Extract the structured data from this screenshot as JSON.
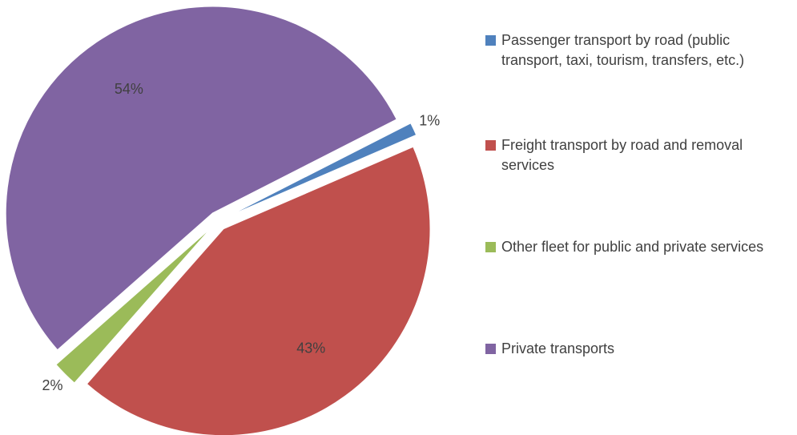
{
  "chart_data": {
    "type": "pie",
    "categories": [
      "Passenger transport by road (public transport, taxi, tourism, transfers, etc.)",
      "Freight transport by road and removal services",
      "Other fleet for public and private services",
      "Private transports"
    ],
    "values": [
      1,
      43,
      2,
      54
    ],
    "value_labels": [
      "1%",
      "43%",
      "2%",
      "54%"
    ],
    "colors": [
      "#4f81bd",
      "#c0504d",
      "#9bbb59",
      "#8064a2"
    ],
    "legend": "right"
  }
}
